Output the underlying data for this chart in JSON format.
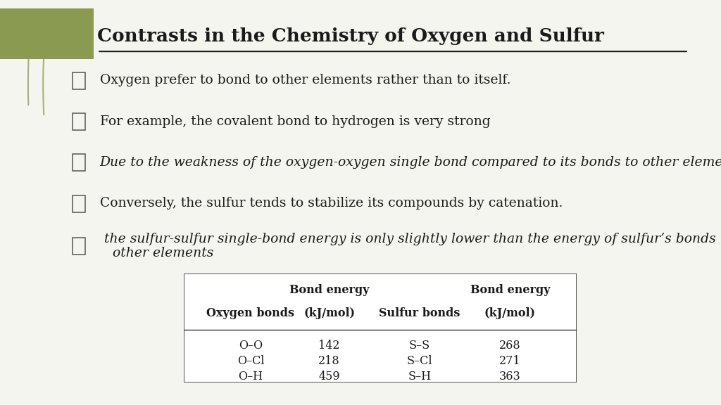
{
  "title": "Contrasts in the Chemistry of Oxygen and Sulfur",
  "slide_bg": "#f5f5f0",
  "accent_color": "#8a9a50",
  "bullet_points": [
    {
      "text": "Oxygen prefer to bond to other elements rather than to itself.",
      "italic": false
    },
    {
      "text": "For example, the covalent bond to hydrogen is very strong",
      "italic": false
    },
    {
      "text": "Due to the weakness of the oxygen-oxygen single bond compared to its bonds to other elements",
      "italic": true
    },
    {
      "text": "Conversely, the sulfur tends to stabilize its compounds by catenation.",
      "italic": false
    },
    {
      "text": " the sulfur-sulfur single-bond energy is only slightly lower than the energy of sulfur’s bonds to\n   other elements",
      "italic": true
    }
  ],
  "table_rows": [
    [
      "O–O",
      "142",
      "S–S",
      "268"
    ],
    [
      "O–Cl",
      "218",
      "S–Cl",
      "271"
    ],
    [
      "O–H",
      "459",
      "S–H",
      "363"
    ]
  ]
}
